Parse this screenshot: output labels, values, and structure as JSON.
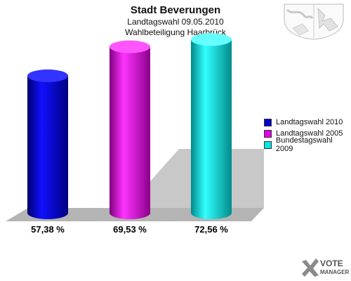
{
  "header": {
    "title": "Stadt Beverungen",
    "subtitle": "Landtagswahl 09.05.2010",
    "subtitle2": "Wahlbeteiligung Haarbrück"
  },
  "chart_data": {
    "type": "bar",
    "title": "Stadt Beverungen",
    "categories": [
      "Landtagswahl 2010",
      "Landtagswahl 2005",
      "Bundestagswahl 2009"
    ],
    "values": [
      57.38,
      69.53,
      72.56
    ],
    "value_labels": [
      "57,38 %",
      "69,53 %",
      "72,56 %"
    ],
    "colors": [
      "#0000cc",
      "#e600e6",
      "#00e5e5"
    ],
    "ylim": [
      0,
      80
    ],
    "grid": false,
    "legend_position": "right"
  },
  "legend": {
    "items": [
      {
        "label": "Landtagswahl 2010",
        "color": "#0000cc"
      },
      {
        "label": "Landtagswahl 2005",
        "color": "#e600e6"
      },
      {
        "label": "Bundestagswahl 2009",
        "color": "#00e5e5"
      }
    ]
  },
  "branding": {
    "logo_line1": "VOTE",
    "logo_line2": "MANAGER"
  }
}
